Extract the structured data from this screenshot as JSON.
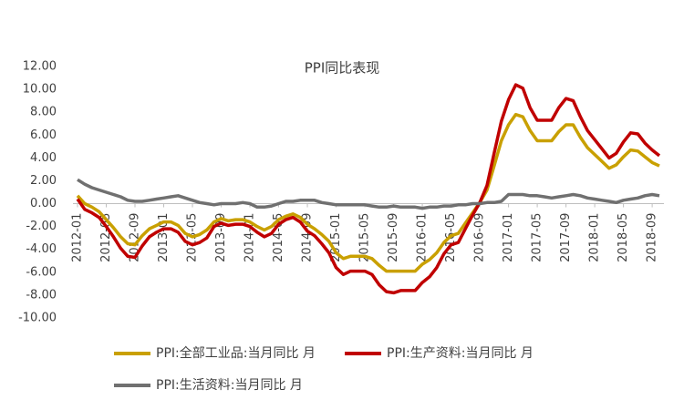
{
  "chart_data": {
    "type": "line",
    "title": "PPI同比表现",
    "categories": [
      "2012-01",
      null,
      null,
      null,
      "2012-05",
      null,
      null,
      null,
      "2012-09",
      null,
      null,
      null,
      "2013-01",
      null,
      null,
      null,
      "2013-05",
      null,
      null,
      null,
      "2013-09",
      null,
      null,
      null,
      "2014-01",
      null,
      null,
      null,
      "2014-05",
      null,
      null,
      null,
      "2014-09",
      null,
      null,
      null,
      "2015-01",
      null,
      null,
      null,
      "2015-05",
      null,
      null,
      null,
      "2015-09",
      null,
      null,
      null,
      "2016-01",
      null,
      null,
      null,
      "2016-05",
      null,
      null,
      null,
      "2016-09",
      null,
      null,
      null,
      "2017-01",
      null,
      null,
      null,
      "2017-05",
      null,
      null,
      null,
      "2017-09",
      null,
      null,
      null,
      "2018-01",
      null,
      null,
      null,
      "2018-05",
      null,
      null,
      null,
      "2018-09",
      null
    ],
    "series": [
      {
        "name": "PPI:全部工业品:当月同比 月",
        "color": "#c9a000",
        "values": [
          0.7,
          0.0,
          -0.3,
          -0.7,
          -1.4,
          -2.1,
          -2.9,
          -3.5,
          -3.6,
          -2.8,
          -2.2,
          -1.9,
          -1.6,
          -1.6,
          -1.9,
          -2.6,
          -2.9,
          -2.7,
          -2.3,
          -1.6,
          -1.3,
          -1.5,
          -1.4,
          -1.4,
          -1.6,
          -2.0,
          -2.3,
          -2.0,
          -1.4,
          -1.1,
          -0.9,
          -1.2,
          -1.8,
          -2.2,
          -2.7,
          -3.3,
          -4.3,
          -4.8,
          -4.6,
          -4.6,
          -4.6,
          -4.8,
          -5.4,
          -5.9,
          -5.9,
          -5.9,
          -5.9,
          -5.9,
          -5.3,
          -4.9,
          -4.3,
          -3.4,
          -2.8,
          -2.6,
          -1.7,
          -0.8,
          0.1,
          1.2,
          3.3,
          5.5,
          6.9,
          7.8,
          7.6,
          6.4,
          5.5,
          5.5,
          5.5,
          6.3,
          6.9,
          6.9,
          5.8,
          4.9,
          4.3,
          3.7,
          3.1,
          3.4,
          4.1,
          4.7,
          4.6,
          4.1,
          3.6,
          3.3
        ]
      },
      {
        "name": "PPI:生产资料:当月同比 月",
        "color": "#c00000",
        "values": [
          0.4,
          -0.5,
          -0.8,
          -1.2,
          -2.0,
          -2.9,
          -3.9,
          -4.6,
          -4.7,
          -3.7,
          -2.9,
          -2.5,
          -2.2,
          -2.2,
          -2.5,
          -3.3,
          -3.6,
          -3.4,
          -3.0,
          -2.0,
          -1.7,
          -1.9,
          -1.8,
          -1.8,
          -2.0,
          -2.5,
          -2.9,
          -2.6,
          -1.8,
          -1.4,
          -1.2,
          -1.6,
          -2.4,
          -2.8,
          -3.5,
          -4.3,
          -5.6,
          -6.2,
          -5.9,
          -5.9,
          -5.9,
          -6.2,
          -7.1,
          -7.7,
          -7.8,
          -7.6,
          -7.6,
          -7.6,
          -6.9,
          -6.4,
          -5.6,
          -4.4,
          -3.6,
          -3.4,
          -2.2,
          -1.0,
          0.1,
          1.6,
          4.4,
          7.2,
          9.1,
          10.4,
          10.1,
          8.4,
          7.3,
          7.3,
          7.3,
          8.4,
          9.2,
          9.0,
          7.6,
          6.4,
          5.6,
          4.8,
          4.0,
          4.4,
          5.4,
          6.2,
          6.1,
          5.3,
          4.7,
          4.2
        ]
      },
      {
        "name": "PPI:生活资料:当月同比 月",
        "color": "#707070",
        "values": [
          2.1,
          1.7,
          1.4,
          1.2,
          1.0,
          0.8,
          0.6,
          0.3,
          0.2,
          0.2,
          0.3,
          0.4,
          0.5,
          0.6,
          0.7,
          0.5,
          0.3,
          0.1,
          0.0,
          -0.1,
          0.0,
          0.0,
          0.0,
          0.1,
          0.0,
          -0.3,
          -0.3,
          -0.2,
          0.0,
          0.2,
          0.2,
          0.3,
          0.3,
          0.3,
          0.1,
          0.0,
          -0.1,
          -0.1,
          -0.1,
          -0.1,
          -0.1,
          -0.2,
          -0.3,
          -0.3,
          -0.2,
          -0.3,
          -0.3,
          -0.3,
          -0.4,
          -0.3,
          -0.3,
          -0.2,
          -0.2,
          -0.1,
          -0.1,
          0.0,
          0.0,
          0.1,
          0.1,
          0.2,
          0.8,
          0.8,
          0.8,
          0.7,
          0.7,
          0.6,
          0.5,
          0.6,
          0.7,
          0.8,
          0.7,
          0.5,
          0.4,
          0.3,
          0.2,
          0.1,
          0.3,
          0.4,
          0.5,
          0.7,
          0.8,
          0.7
        ]
      }
    ],
    "ylim": [
      -10,
      12
    ],
    "yticks": [
      {
        "value": 12,
        "label": "12.00"
      },
      {
        "value": 10,
        "label": "10.00"
      },
      {
        "value": 8,
        "label": "8.00"
      },
      {
        "value": 6,
        "label": "6.00"
      },
      {
        "value": 4,
        "label": "4.00"
      },
      {
        "value": 2,
        "label": "2.00"
      },
      {
        "value": 0,
        "label": "0.00"
      },
      {
        "value": -2,
        "label": "-2.00"
      },
      {
        "value": -4,
        "label": "-4.00"
      },
      {
        "value": -6,
        "label": "-6.00"
      },
      {
        "value": -8,
        "label": "-8.00"
      },
      {
        "value": -10,
        "label": "-10.00"
      }
    ],
    "grid": false
  }
}
